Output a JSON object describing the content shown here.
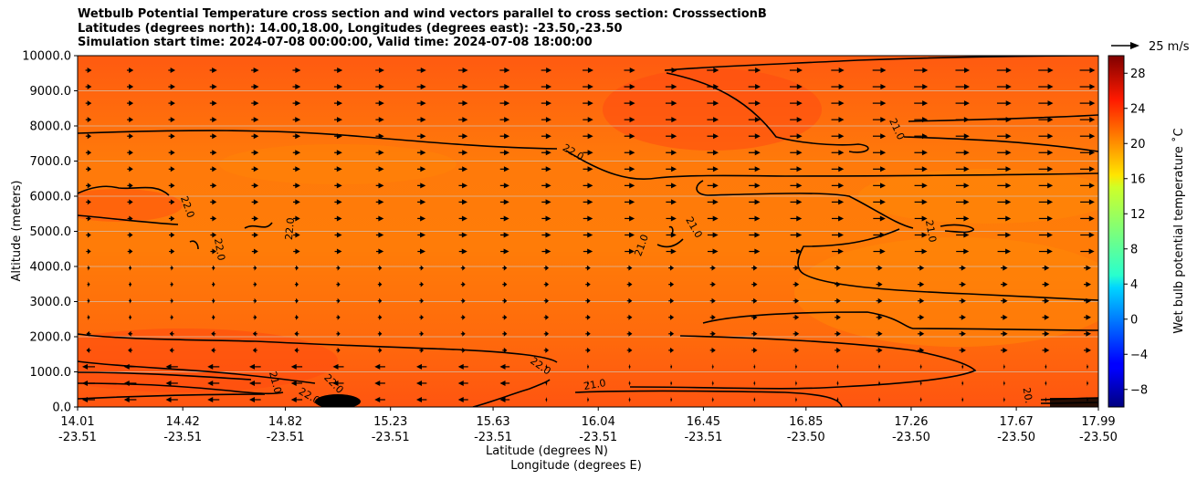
{
  "chart_data": {
    "type": "heatmap",
    "title_lines": [
      "Wetbulb Potential Temperature cross section and wind vectors parallel to cross section: CrosssectionB",
      "Latitudes (degrees north): 14.00,18.00, Longitudes (degrees east): -23.50,-23.50",
      "Simulation start time: 2024-07-08 00:00:00, Valid time: 2024-07-08 18:00:00"
    ],
    "ylabel": "Altitude (meters)",
    "xlabel_lat": "Latitude (degrees N)",
    "xlabel_lon": "Longitude (degrees E)",
    "ylim": [
      0,
      10000
    ],
    "y_ticks": [
      "0.0",
      "1000.0",
      "2000.0",
      "3000.0",
      "4000.0",
      "5000.0",
      "6000.0",
      "7000.0",
      "8000.0",
      "9000.0",
      "10000.0"
    ],
    "xlim": [
      14.01,
      17.99
    ],
    "x_ticks": [
      {
        "lat": "14.01",
        "lon": "-23.51"
      },
      {
        "lat": "14.42",
        "lon": "-23.51"
      },
      {
        "lat": "14.82",
        "lon": "-23.51"
      },
      {
        "lat": "15.23",
        "lon": "-23.51"
      },
      {
        "lat": "15.63",
        "lon": "-23.51"
      },
      {
        "lat": "16.04",
        "lon": "-23.51"
      },
      {
        "lat": "16.45",
        "lon": "-23.51"
      },
      {
        "lat": "16.85",
        "lon": "-23.50"
      },
      {
        "lat": "17.26",
        "lon": "-23.50"
      },
      {
        "lat": "17.67",
        "lon": "-23.50"
      },
      {
        "lat": "17.99",
        "lon": "-23.50"
      }
    ],
    "colorbar": {
      "label": "Wet bulb potential temperature ˚C",
      "range": [
        -10,
        30
      ],
      "ticks": [
        "−8",
        "−4",
        "0",
        "4",
        "8",
        "12",
        "16",
        "20",
        "24",
        "28"
      ],
      "tick_values": [
        -8,
        -4,
        0,
        4,
        8,
        12,
        16,
        20,
        24,
        28
      ]
    },
    "quiver_key": "25 m/s",
    "contour_levels": [
      20,
      21,
      22
    ],
    "contour_labels": [
      "22.0",
      "22.0",
      "22.0",
      "22.0",
      "21.0",
      "21.0",
      "21.0",
      "21.0",
      "21.0",
      "22.0",
      "22.0",
      "22.0",
      "21.0",
      "20."
    ],
    "field_summary": "Wet bulb potential temperature mostly 20-24 C throughout the section; warmest (~23-24 C) near surface and upper levels in south, coolest (~20-21 C) in mid-levels to the north",
    "wind_summary": "Winds parallel to section mostly northward (rightward) aloft, weak southward near surface in south"
  }
}
